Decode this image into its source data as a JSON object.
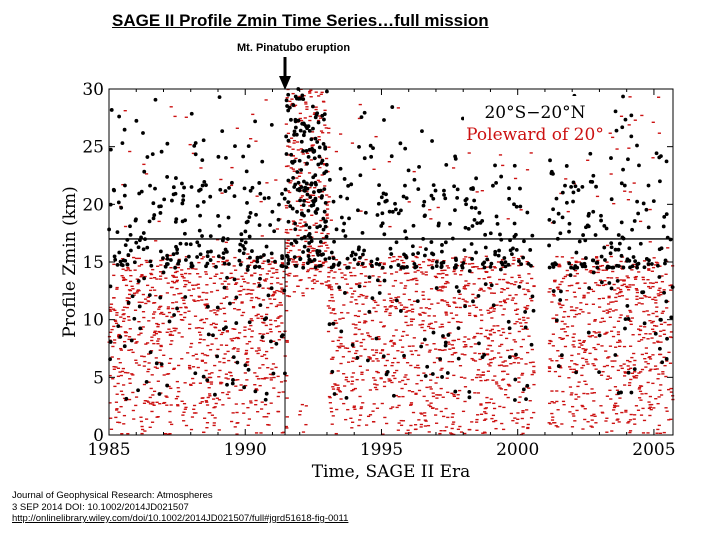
{
  "slide": {
    "title": "SAGE II Profile Zmin Time Series…full mission",
    "annotation": "Mt. Pinatubo eruption"
  },
  "citation": {
    "line1": "Journal of Geophysical Research: Atmospheres",
    "line2": "3 SEP 2014 DOI: 10.1002/2014JD021507",
    "link": "http://onlinelibrary.wiley.com/doi/10.1002/2014JD021507/full#jgrd51618-fig-0011"
  },
  "chart_data": {
    "type": "scatter",
    "title": "",
    "xlabel": "Time, SAGE II Era",
    "ylabel": "Profile Zmin (km)",
    "xlim": [
      1985,
      2005.7
    ],
    "ylim": [
      0,
      30
    ],
    "xticks": [
      1985,
      1990,
      1995,
      2000,
      2005
    ],
    "yticks": [
      0,
      5,
      10,
      15,
      20,
      25,
      30
    ],
    "reference_line_y": 17,
    "event": {
      "x": 1991.46,
      "label": "Mt. Pinatubo eruption"
    },
    "data_gap": [
      2000.6,
      2001.15
    ],
    "legend_position": "top-right",
    "series": [
      {
        "name": "20°S−20°N",
        "color": "#000000",
        "marker": "circle"
      },
      {
        "name": "Poleward of 20°",
        "color": "#cc1111",
        "marker": "dash"
      }
    ]
  }
}
